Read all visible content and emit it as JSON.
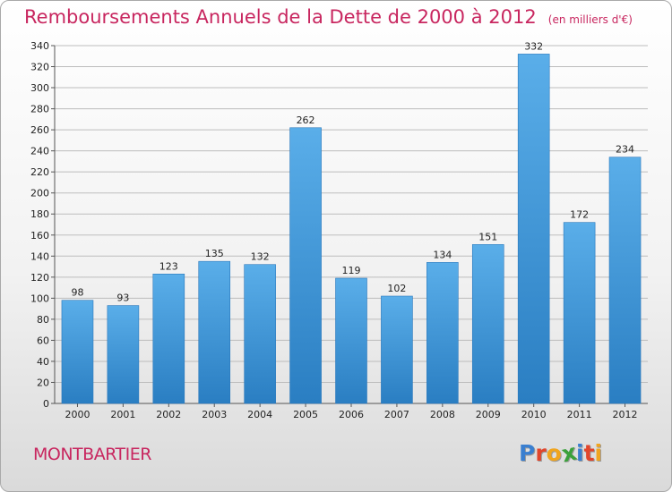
{
  "header": {
    "title": "Remboursements Annuels de la Dette de 2000 à 2012",
    "unit": "(en milliers d'€)"
  },
  "footer": {
    "commune": "MONTBARTIER",
    "logo_letters": [
      {
        "char": "P",
        "color": "#3a7fd0"
      },
      {
        "char": "r",
        "color": "#e2452b"
      },
      {
        "char": "o",
        "color": "#f0a51f"
      },
      {
        "char": "x",
        "color": "#3aa13a"
      },
      {
        "char": "i",
        "color": "#3a7fd0"
      },
      {
        "char": "t",
        "color": "#e2452b"
      },
      {
        "char": "i",
        "color": "#f0a51f"
      }
    ]
  },
  "colors": {
    "bar_top": "#5aaee9",
    "bar_bottom": "#2a7ec2",
    "bar_stroke": "#2a78bc",
    "grid": "#bdbdbd",
    "title": "#c8265f"
  },
  "chart_data": {
    "type": "bar",
    "title": "Remboursements Annuels de la Dette de 2000 à 2012",
    "subtitle": "(en milliers d'€)",
    "xlabel": "",
    "ylabel": "",
    "categories": [
      "2000",
      "2001",
      "2002",
      "2003",
      "2004",
      "2005",
      "2006",
      "2007",
      "2008",
      "2009",
      "2010",
      "2011",
      "2012"
    ],
    "values": [
      98,
      93,
      123,
      135,
      132,
      262,
      119,
      102,
      134,
      151,
      332,
      172,
      234
    ],
    "ylim": [
      0,
      340
    ],
    "ytick_step": 20,
    "grid": true,
    "legend": "none"
  }
}
